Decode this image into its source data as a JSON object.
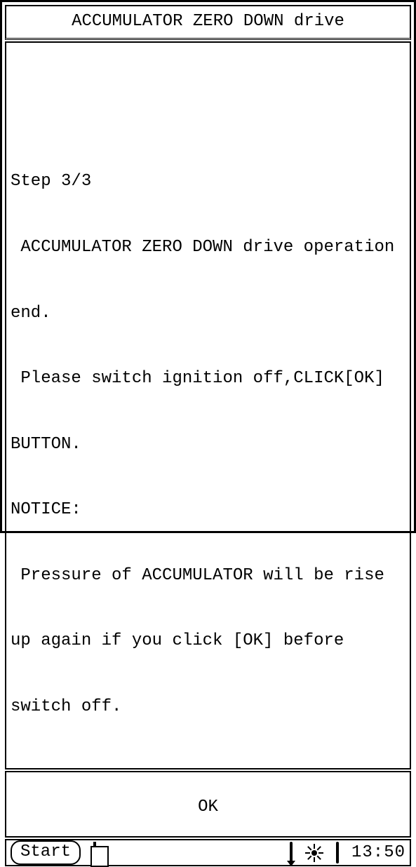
{
  "window": {
    "title": "ACCUMULATOR ZERO DOWN drive"
  },
  "body": {
    "step_line": "Step 3/3",
    "line1": " ACCUMULATOR ZERO DOWN drive operation",
    "line2": "end.",
    "line3": " Please switch ignition off,CLICK[OK]",
    "line4": "BUTTON.",
    "line5": "NOTICE:",
    "line6": " Pressure of ACCUMULATOR will be rise",
    "line7": "up again if you click [OK] before",
    "line8": "switch off."
  },
  "buttons": {
    "ok": "OK"
  },
  "taskbar": {
    "start": "Start",
    "clock": "13:50"
  },
  "colors": {
    "fg": "#000000",
    "bg": "#ffffff"
  }
}
